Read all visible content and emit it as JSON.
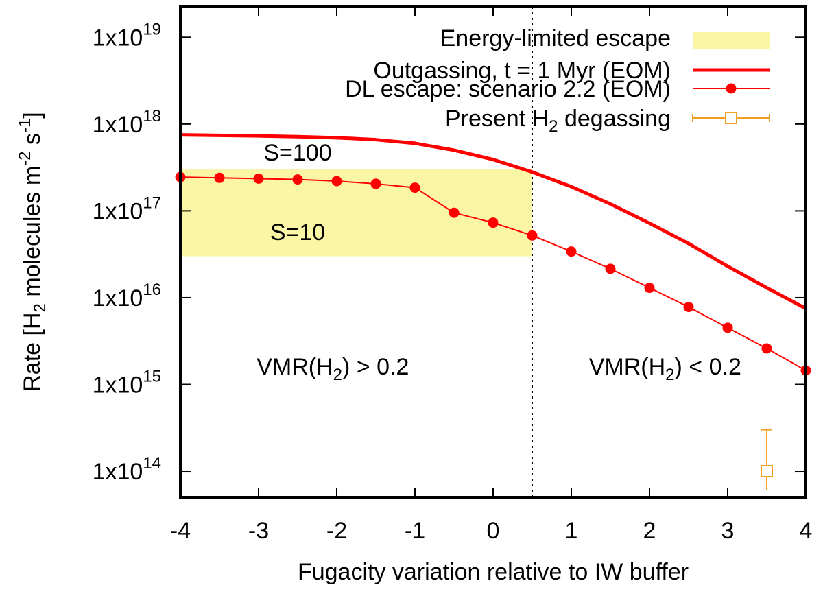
{
  "chart_data": {
    "type": "line",
    "xlabel": "Fugacity variation relative to IW buffer",
    "ylabel_parts": [
      "Rate [H",
      "2",
      " molecules m",
      "-2",
      " s",
      "-1",
      "]"
    ],
    "xlim": [
      -4,
      4
    ],
    "ylim_log10": [
      13.7,
      19.35
    ],
    "x_ticks": [
      -4,
      -3,
      -2,
      -1,
      0,
      1,
      2,
      3,
      4
    ],
    "x_tick_labels": [
      "-4",
      "-3",
      "-2",
      "-1",
      "0",
      "1",
      "2",
      "3",
      "4"
    ],
    "y_ticks_log10": [
      14,
      15,
      16,
      17,
      18,
      19
    ],
    "y_tick_base": "1x10",
    "y_tick_exponents": [
      "14",
      "15",
      "16",
      "17",
      "18",
      "19"
    ],
    "energy_band": {
      "name": "Energy-limited escape",
      "x_range": [
        -4,
        0.5
      ],
      "y_range": [
        3e+16,
        3e+17
      ],
      "color": "#fbf5a6"
    },
    "series": [
      {
        "name": "Outgassing, t = 1 Myr (EOM)",
        "style": "line",
        "color": "#ff0000",
        "x": [
          -4,
          -3.5,
          -3,
          -2.5,
          -2,
          -1.5,
          -1,
          -0.5,
          0,
          0.5,
          1,
          1.5,
          2,
          2.5,
          3,
          3.5,
          4
        ],
        "y": [
          7.5e+17,
          7.4e+17,
          7.3e+17,
          7.15e+17,
          6.95e+17,
          6.6e+17,
          6e+17,
          5e+17,
          3.9e+17,
          2.8e+17,
          1.9e+17,
          1.2e+17,
          7.2e+16,
          4.2e+16,
          2.3e+16,
          1.3e+16,
          7500000000000000.0
        ]
      },
      {
        "name": "DL escape: scenario 2.2 (EOM)",
        "style": "line-points",
        "color": "#ff0000",
        "x": [
          -4,
          -3.5,
          -3,
          -2.5,
          -2,
          -1.5,
          -1,
          -0.5,
          0,
          0.5,
          1,
          1.5,
          2,
          2.5,
          3,
          3.5,
          4
        ],
        "y": [
          2.45e+17,
          2.4e+17,
          2.35e+17,
          2.3e+17,
          2.2e+17,
          2.05e+17,
          1.85e+17,
          9.5e+16,
          7.3e+16,
          5.2e+16,
          3.4e+16,
          2.15e+16,
          1.3e+16,
          7800000000000000.0,
          4500000000000000.0,
          2600000000000000.0,
          1450000000000000.0
        ]
      },
      {
        "name_parts": [
          "Present H",
          "2",
          " degassing"
        ],
        "style": "point-errorbar",
        "color": "#f0a020",
        "x": [
          3.5
        ],
        "y": [
          100000000000000.0
        ],
        "y_err_high": [
          300000000000000.0
        ],
        "y_err_low": [
          60000000000000.0
        ]
      }
    ],
    "vline": {
      "x": 0.5,
      "style": "dotted"
    },
    "annotations": [
      {
        "text": "S=100",
        "x": -2.5,
        "y": 3.8e+17
      },
      {
        "text": "S=10",
        "x": -2.5,
        "y": 4.6e+16
      },
      {
        "parts": [
          "VMR(H",
          "2",
          ") > 0.2"
        ],
        "x": -2.05,
        "y": 1300000000000000.0
      },
      {
        "parts": [
          "VMR(H",
          "2",
          ") < 0.2"
        ],
        "x": 2.2,
        "y": 1300000000000000.0
      }
    ]
  }
}
